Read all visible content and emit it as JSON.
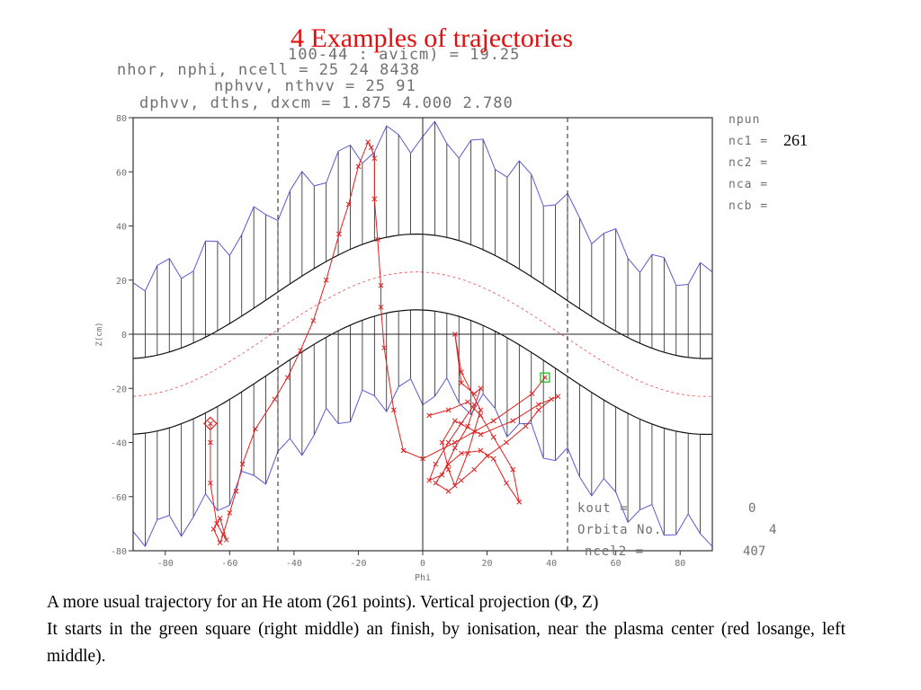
{
  "title": "4 Examples of trajectories",
  "caption": {
    "line1": "A more usual trajectory for an He atom (261 points). Vertical projection (Φ, Z)",
    "line2": "It starts in the green square (right middle) an finish, by ionisation, near the plasma center (red losange, left middle)."
  },
  "header_block": {
    "line0": "100-44 : avicm) =     19.25",
    "line1": "nhor, nphi, ncell =          25          24        8438",
    "line2": "nphvv, nthvv =            25           91",
    "line3": "dphvv, dths, dxcm =   1.875       4.000       2.780"
  },
  "side_panel": {
    "npun": "npun",
    "nc1": "nc1 =",
    "nc1_value": "261",
    "nc2": "nc2 =",
    "nca": "nca =",
    "ncb": "ncb ="
  },
  "lower_panel": {
    "kout_label": "kout =",
    "kout_value": "0",
    "orbita_label": "Orbita No.",
    "orbita_value": "4",
    "ncel2_label": "ncel2 =",
    "ncel2_value": "407"
  },
  "colors": {
    "title": "#e01010",
    "trajectory": "#e02020",
    "cells": "#222222",
    "boundary": "#5a5ad0",
    "start_marker": "#20c020",
    "mid_dashed": "#e05050"
  },
  "chart_data": {
    "type": "line",
    "xlabel": "Phi",
    "ylabel": "Z(cm)",
    "xlim": [
      -90,
      90
    ],
    "ylim": [
      -80,
      80
    ],
    "x_ticks": [
      -80,
      -60,
      -40,
      -20,
      0,
      20,
      40,
      60,
      80
    ],
    "y_ticks": [
      -80,
      -60,
      -40,
      -20,
      0,
      20,
      40,
      60,
      80
    ],
    "vertical_dashed_x": [
      -45,
      45
    ],
    "grid": false,
    "series": [
      {
        "values": [
          [
            38,
            -16
          ],
          [
            34,
            -22
          ],
          [
            22,
            -32
          ],
          [
            10,
            -40
          ],
          [
            0,
            -46
          ],
          [
            -6,
            -43
          ],
          [
            -9,
            -28
          ],
          [
            -12,
            -5
          ],
          [
            -13,
            10
          ],
          [
            -13,
            18
          ],
          [
            -14,
            35
          ],
          [
            -15,
            50
          ],
          [
            -15,
            65
          ],
          [
            -16,
            69
          ],
          [
            -17,
            71
          ],
          [
            -20,
            62
          ],
          [
            -23,
            48
          ],
          [
            -26,
            37
          ],
          [
            -30,
            20
          ],
          [
            -34,
            5
          ],
          [
            -38,
            -6
          ],
          [
            -42,
            -16
          ],
          [
            -46,
            -24
          ],
          [
            -52,
            -35
          ],
          [
            -56,
            -48
          ],
          [
            -58,
            -58
          ],
          [
            -60,
            -66
          ],
          [
            -62,
            -74
          ],
          [
            -63,
            -77
          ],
          [
            -65,
            -72
          ],
          [
            -63,
            -68
          ],
          [
            -61,
            -76
          ],
          [
            -64,
            -70
          ],
          [
            -66,
            -55
          ],
          [
            -66,
            -40
          ],
          [
            -66,
            -33
          ]
        ]
      },
      {
        "values": [
          [
            2,
            -30
          ],
          [
            8,
            -28
          ],
          [
            14,
            -25
          ],
          [
            18,
            -30
          ],
          [
            22,
            -38
          ],
          [
            28,
            -50
          ],
          [
            30,
            -62
          ],
          [
            26,
            -55
          ],
          [
            22,
            -46
          ],
          [
            18,
            -43
          ],
          [
            12,
            -44
          ],
          [
            8,
            -48
          ],
          [
            4,
            -55
          ],
          [
            8,
            -58
          ],
          [
            12,
            -54
          ],
          [
            16,
            -50
          ],
          [
            20,
            -45
          ],
          [
            26,
            -40
          ],
          [
            32,
            -34
          ],
          [
            36,
            -28
          ],
          [
            40,
            -24
          ],
          [
            42,
            -23
          ],
          [
            36,
            -26
          ],
          [
            28,
            -32
          ],
          [
            18,
            -37
          ],
          [
            10,
            -32
          ],
          [
            6,
            -40
          ],
          [
            8,
            -50
          ],
          [
            10,
            -56
          ],
          [
            14,
            -44
          ],
          [
            16,
            -36
          ],
          [
            18,
            -28
          ],
          [
            12,
            -14
          ],
          [
            10,
            0
          ],
          [
            12,
            -18
          ],
          [
            16,
            -22
          ],
          [
            18,
            -20
          ],
          [
            14,
            -34
          ],
          [
            10,
            -42
          ],
          [
            6,
            -52
          ],
          [
            2,
            -54
          ],
          [
            4,
            -48
          ],
          [
            8,
            -40
          ],
          [
            12,
            -33
          ],
          [
            16,
            -26
          ]
        ]
      }
    ],
    "start_marker": {
      "shape": "square",
      "x": 38,
      "y": -16
    },
    "end_marker": {
      "shape": "diamond",
      "x": -66,
      "y": -33
    }
  }
}
